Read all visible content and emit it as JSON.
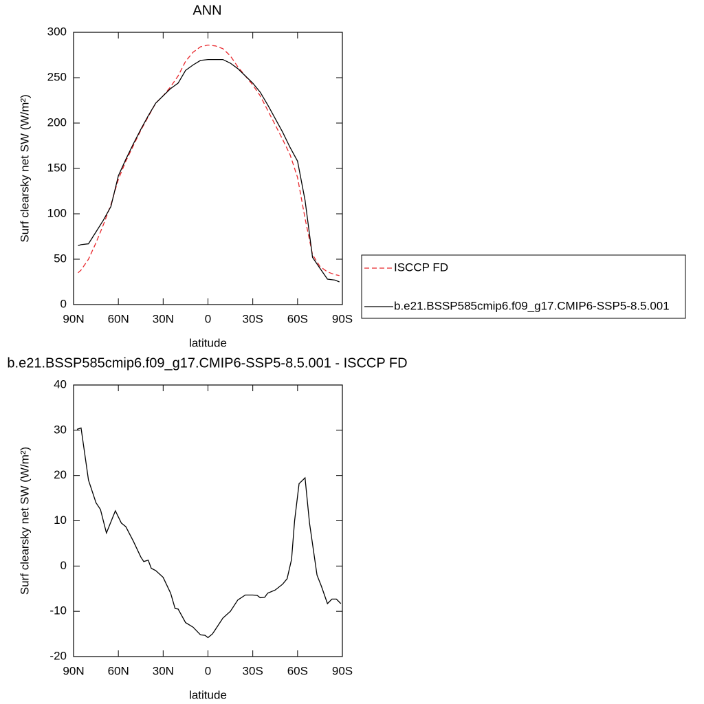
{
  "chart_data": [
    {
      "type": "line",
      "title": "ANN",
      "xlabel": "latitude",
      "ylabel": "Surf clearsky net SW (W/m²)",
      "xlim": [
        90,
        -90
      ],
      "xticks": [
        {
          "value": 90,
          "label": "90N"
        },
        {
          "value": 60,
          "label": "60N"
        },
        {
          "value": 30,
          "label": "30N"
        },
        0,
        {
          "value": -30,
          "label": "30S"
        },
        {
          "value": -60,
          "label": "60S"
        },
        {
          "value": -90,
          "label": "90S"
        }
      ],
      "ylim": [
        0,
        300
      ],
      "yticks": [
        0,
        50,
        100,
        150,
        200,
        250,
        300
      ],
      "legend": "right",
      "x": [
        87,
        85,
        80,
        75,
        70,
        65,
        60,
        55,
        50,
        45,
        40,
        35,
        30,
        25,
        20,
        15,
        10,
        5,
        0,
        -5,
        -10,
        -15,
        -20,
        -25,
        -30,
        -35,
        -40,
        -45,
        -50,
        -55,
        -60,
        -65,
        -70,
        -75,
        -80,
        -85,
        -88
      ],
      "series": [
        {
          "name": "ISCCP FD",
          "color": "#e8262b",
          "dashed": true,
          "values": [
            35,
            38,
            50,
            68,
            88,
            110,
            138,
            158,
            175,
            192,
            207,
            222,
            230,
            240,
            252,
            268,
            278,
            284,
            286,
            285,
            282,
            274,
            262,
            252,
            242,
            230,
            214,
            198,
            182,
            165,
            140,
            95,
            55,
            42,
            36,
            33,
            32
          ]
        },
        {
          "name": "b.e21.BSSP585cmip6.f09_g17.CMIP6-SSP5-8.5.001",
          "color": "#000000",
          "dashed": false,
          "values": [
            65,
            66,
            67,
            80,
            93,
            108,
            142,
            160,
            177,
            193,
            208,
            222,
            230,
            238,
            244,
            258,
            264,
            269,
            270,
            270,
            270,
            266,
            260,
            252,
            244,
            234,
            220,
            205,
            190,
            173,
            158,
            115,
            52,
            40,
            28,
            27,
            25
          ]
        }
      ]
    },
    {
      "type": "line",
      "title": "b.e21.BSSP585cmip6.f09_g17.CMIP6-SSP5-8.5.001 - ISCCP FD",
      "xlabel": "latitude",
      "ylabel": "Surf clearsky net SW (W/m²)",
      "xlim": [
        90,
        -90
      ],
      "xticks": [
        {
          "value": 90,
          "label": "90N"
        },
        {
          "value": 60,
          "label": "60N"
        },
        {
          "value": 30,
          "label": "30N"
        },
        0,
        {
          "value": -30,
          "label": "30S"
        },
        {
          "value": -60,
          "label": "60S"
        },
        {
          "value": -90,
          "label": "90S"
        }
      ],
      "ylim": [
        -20,
        40
      ],
      "yticks": [
        -20,
        -10,
        0,
        10,
        20,
        30,
        40
      ],
      "x": [
        87.7,
        85,
        80,
        75,
        72,
        68,
        62,
        58,
        55,
        50,
        45,
        43,
        40,
        38,
        35,
        30,
        25,
        22,
        20,
        15,
        10,
        5,
        2,
        0,
        -3,
        -5,
        -10,
        -15,
        -20,
        -25,
        -30,
        -33,
        -35,
        -38,
        -40,
        -45,
        -50,
        -53,
        -56,
        -58,
        -61,
        -65,
        -68,
        -73,
        -76,
        -80,
        -83,
        -86,
        -89
      ],
      "series": [
        {
          "name": null,
          "color": "#000000",
          "dashed": false,
          "values": [
            30.2,
            30.5,
            19,
            14,
            12.5,
            7.3,
            12.2,
            9.5,
            8.7,
            5.5,
            2,
            1,
            1.3,
            -0.5,
            -1,
            -2.5,
            -6,
            -9.4,
            -9.5,
            -12.5,
            -13.5,
            -15.2,
            -15.3,
            -15.8,
            -15,
            -14,
            -11.5,
            -10,
            -7.5,
            -6.4,
            -6.4,
            -6.5,
            -7,
            -6.9,
            -6,
            -5.3,
            -4,
            -2.8,
            1.5,
            10,
            18.2,
            19.5,
            9.5,
            -2,
            -4.5,
            -8.3,
            -7.3,
            -7.3,
            -8.3
          ]
        }
      ]
    }
  ]
}
